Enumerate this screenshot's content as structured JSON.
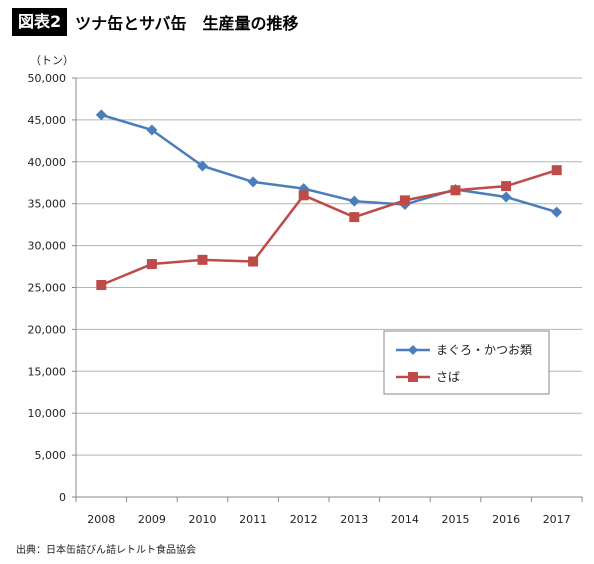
{
  "header": {
    "figure_label": "図表2",
    "title": "ツナ缶とサバ缶　生産量の推移"
  },
  "source": "出典：日本缶詰びん詰レトルト食品協会",
  "chart_data": {
    "type": "line",
    "title": "ツナ缶とサバ缶　生産量の推移",
    "ylabel": "（トン）",
    "xlabel": "",
    "x": [
      "2008",
      "2009",
      "2010",
      "2011",
      "2012",
      "2013",
      "2014",
      "2015",
      "2016",
      "2017"
    ],
    "ylim": [
      0,
      50000
    ],
    "yticks": [
      0,
      5000,
      10000,
      15000,
      20000,
      25000,
      30000,
      35000,
      40000,
      45000,
      50000
    ],
    "ytick_labels": [
      "0",
      "5,000",
      "10,000",
      "15,000",
      "20,000",
      "25,000",
      "30,000",
      "35,000",
      "40,000",
      "45,000",
      "50,000"
    ],
    "grid": "horizontal",
    "legend": "center-right",
    "series": [
      {
        "name": "まぐろ・かつお類",
        "color": "#4a7ebb",
        "marker": "diamond",
        "values": [
          45600,
          43800,
          39500,
          37600,
          36800,
          35300,
          34900,
          36700,
          35800,
          34000
        ]
      },
      {
        "name": "さば",
        "color": "#be4b48",
        "marker": "square",
        "values": [
          25300,
          27800,
          28300,
          28100,
          36000,
          33400,
          35400,
          36600,
          37100,
          39000
        ]
      }
    ]
  }
}
